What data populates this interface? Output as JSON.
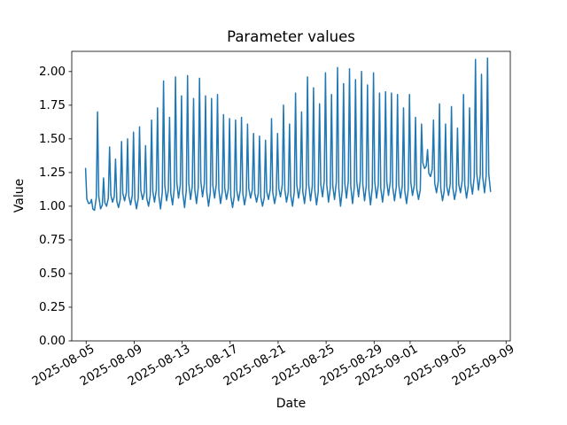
{
  "chart_data": {
    "type": "line",
    "title": "Parameter values",
    "xlabel": "Date",
    "ylabel": "Value",
    "grid": false,
    "legend": null,
    "line_color": "#1f77b4",
    "x_epoch_date": "2025-08-04",
    "xlim_days": [
      -0.2,
      36.35
    ],
    "ylim": [
      0,
      2.15
    ],
    "x_tick_days": [
      1,
      5,
      9,
      13,
      17,
      21,
      25,
      28,
      32,
      36
    ],
    "x_tick_labels": [
      "2025-08-05",
      "2025-08-09",
      "2025-08-13",
      "2025-08-17",
      "2025-08-21",
      "2025-08-25",
      "2025-08-29",
      "2025-09-01",
      "2025-09-05",
      "2025-09-09"
    ],
    "y_tick_values": [
      0,
      0.25,
      0.5,
      0.75,
      1,
      1.25,
      1.5,
      1.75,
      2
    ],
    "y_tick_labels": [
      "0.00",
      "0.25",
      "0.50",
      "0.75",
      "1.00",
      "1.25",
      "1.50",
      "1.75",
      "2.00"
    ],
    "series": [
      {
        "name": "parameter-values",
        "color": "#1f77b4",
        "first_peak_day": 0.95,
        "peak_interval_days": 0.5,
        "peaks": [
          1.28,
          1.05,
          1.7,
          1.21,
          1.44,
          1.35,
          1.48,
          1.5,
          1.55,
          1.59,
          1.45,
          1.64,
          1.73,
          1.93,
          1.66,
          1.96,
          1.82,
          1.97,
          1.8,
          1.95,
          1.82,
          1.8,
          1.83,
          1.68,
          1.65,
          1.64,
          1.66,
          1.61,
          1.54,
          1.52,
          1.49,
          1.65,
          1.54,
          1.75,
          1.61,
          1.84,
          1.7,
          1.96,
          1.88,
          1.76,
          1.99,
          1.83,
          2.03,
          1.91,
          2.02,
          1.94,
          2.0,
          1.9,
          1.99,
          1.84,
          1.85,
          1.84,
          1.83,
          1.73,
          1.83,
          1.66,
          1.61,
          1.42,
          1.64,
          1.76,
          1.61,
          1.74,
          1.58,
          1.83,
          1.73,
          2.09,
          1.98,
          2.1
        ],
        "troughs": [
          1.02,
          0.97,
          0.98,
          1.0,
          1.03,
          0.99,
          1.04,
          1.01,
          0.98,
          1.05,
          1.0,
          1.03,
          0.98,
          1.04,
          1.01,
          1.06,
          0.99,
          1.05,
          1.02,
          1.07,
          1.0,
          1.06,
          1.02,
          1.05,
          0.99,
          1.04,
          1.01,
          1.06,
          1.03,
          1.0,
          1.05,
          1.02,
          1.07,
          1.03,
          1.0,
          1.06,
          1.02,
          1.04,
          1.01,
          1.07,
          1.03,
          1.05,
          1.0,
          1.06,
          1.02,
          1.07,
          1.04,
          1.01,
          1.06,
          1.03,
          1.08,
          1.04,
          1.06,
          1.02,
          1.08,
          1.05,
          1.28,
          1.22,
          1.1,
          1.04,
          1.08,
          1.05,
          1.1,
          1.06,
          1.09,
          1.12,
          1.1
        ],
        "end_point": [
          34.7,
          1.11
        ]
      }
    ]
  }
}
